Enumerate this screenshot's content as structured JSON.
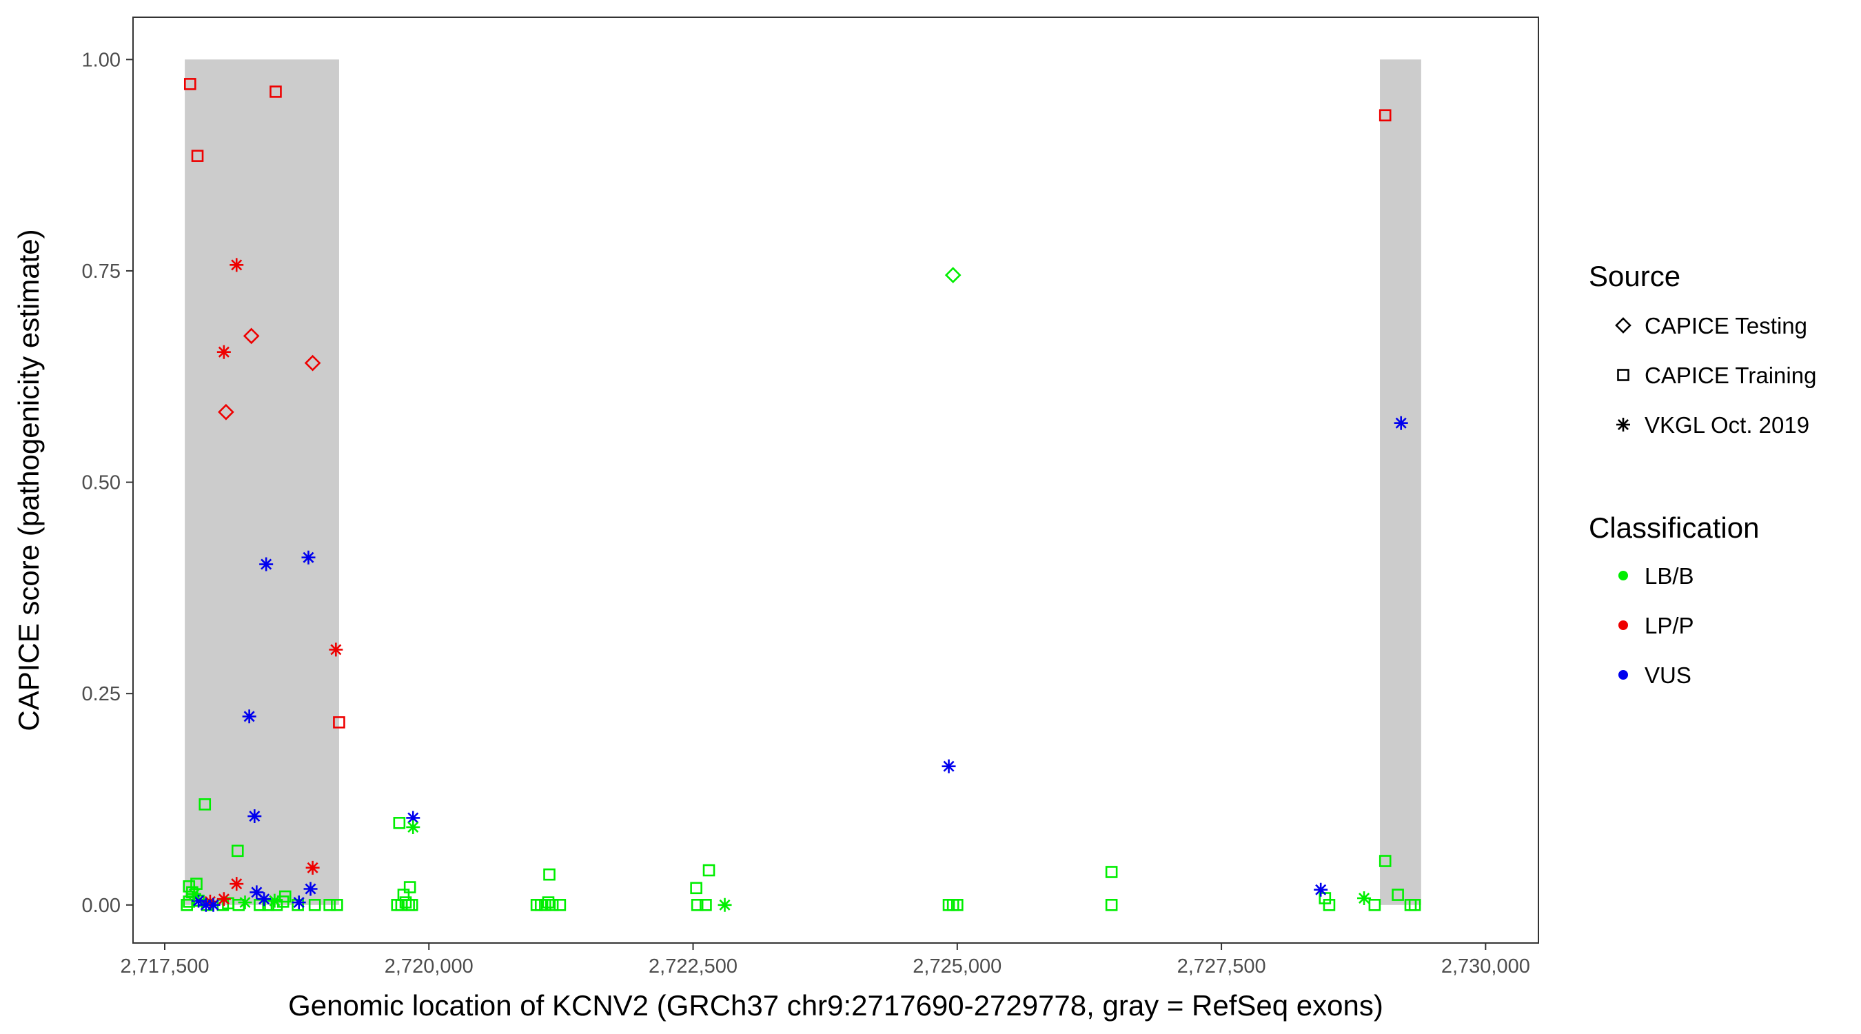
{
  "chart_data": {
    "type": "scatter",
    "xlabel": "Genomic location of KCNV2 (GRCh37 chr9:2717690-2729778, gray = RefSeq exons)",
    "ylabel": "CAPICE score (pathogenicity estimate)",
    "xlim": [
      2717200,
      2730500
    ],
    "ylim": [
      -0.045,
      1.05
    ],
    "x_ticks": [
      2717500,
      2720000,
      2722500,
      2725000,
      2727500,
      2730000
    ],
    "x_tick_labels": [
      "2,717,500",
      "2,720,000",
      "2,722,500",
      "2,725,000",
      "2,727,500",
      "2,730,000"
    ],
    "y_ticks": [
      0,
      0.25,
      0.5,
      0.75,
      1.0
    ],
    "y_tick_labels": [
      "0.00",
      "0.25",
      "0.50",
      "0.75",
      "1.00"
    ],
    "exon_regions": [
      [
        2717690,
        2719150
      ],
      [
        2729000,
        2729390
      ]
    ],
    "exon_region_range": [
      0,
      1
    ],
    "exon_color": "#cccccc",
    "grid": false,
    "legend_position": "right",
    "legend": {
      "source_title": "Source",
      "source_items": [
        {
          "label": "CAPICE Testing",
          "shape": "diamond"
        },
        {
          "label": "CAPICE Training",
          "shape": "square"
        },
        {
          "label": "VKGL Oct. 2019",
          "shape": "asterisk"
        }
      ],
      "class_title": "Classification",
      "class_items": [
        {
          "label": "LB/B",
          "color": "#00ee00"
        },
        {
          "label": "LP/P",
          "color": "#ee0000"
        },
        {
          "label": "VUS",
          "color": "#0000ee"
        }
      ]
    },
    "series": [
      {
        "source": "CAPICE Testing",
        "class": "LP/P",
        "points": [
          [
            2718080,
            0.583
          ],
          [
            2718320,
            0.673
          ],
          [
            2718900,
            0.641
          ]
        ]
      },
      {
        "source": "CAPICE Testing",
        "class": "LB/B",
        "points": [
          [
            2724960,
            0.745
          ]
        ]
      },
      {
        "source": "CAPICE Training",
        "class": "LP/P",
        "points": [
          [
            2717740,
            0.971
          ],
          [
            2717810,
            0.886
          ],
          [
            2718550,
            0.962
          ],
          [
            2719150,
            0.216
          ],
          [
            2729050,
            0.934
          ]
        ]
      },
      {
        "source": "CAPICE Training",
        "class": "LB/B",
        "points": [
          [
            2717880,
            0.119
          ],
          [
            2718190,
            0.064
          ],
          [
            2719720,
            0.097
          ],
          [
            2721140,
            0.036
          ],
          [
            2722650,
            0.041
          ],
          [
            2722530,
            0.02
          ],
          [
            2726460,
            0.039
          ],
          [
            2729050,
            0.052
          ],
          [
            2718640,
            0.01
          ],
          [
            2728480,
            0.008
          ],
          [
            2729170,
            0.012
          ],
          [
            2719820,
            0.021
          ],
          [
            2717710,
            0.0
          ],
          [
            2717730,
            0.004
          ],
          [
            2717760,
            0.015
          ],
          [
            2717800,
            0.025
          ],
          [
            2717730,
            0.022
          ],
          [
            2717820,
            0.005
          ],
          [
            2717900,
            0.0
          ],
          [
            2718050,
            0.0
          ],
          [
            2718100,
            0.002
          ],
          [
            2718200,
            0.0
          ],
          [
            2718400,
            0.0
          ],
          [
            2718480,
            0.0
          ],
          [
            2718560,
            0.0
          ],
          [
            2718620,
            0.004
          ],
          [
            2718760,
            0.0
          ],
          [
            2718920,
            0.0
          ],
          [
            2719060,
            0.0
          ],
          [
            2719130,
            0.0
          ],
          [
            2719700,
            0.0
          ],
          [
            2719740,
            0.0
          ],
          [
            2719780,
            0.003
          ],
          [
            2719810,
            0.0
          ],
          [
            2719840,
            0.0
          ],
          [
            2719760,
            0.012
          ],
          [
            2721020,
            0.0
          ],
          [
            2721060,
            0.0
          ],
          [
            2721100,
            0.0
          ],
          [
            2721130,
            0.003
          ],
          [
            2721170,
            0.0
          ],
          [
            2721240,
            0.0
          ],
          [
            2722540,
            0.0
          ],
          [
            2722620,
            0.0
          ],
          [
            2724920,
            0.0
          ],
          [
            2724960,
            0.0
          ],
          [
            2725000,
            0.0
          ],
          [
            2726460,
            0.0
          ],
          [
            2728520,
            0.0
          ],
          [
            2728950,
            0.0
          ],
          [
            2729290,
            0.0
          ],
          [
            2729330,
            0.0
          ]
        ]
      },
      {
        "source": "VKGL Oct. 2019",
        "class": "LP/P",
        "points": [
          [
            2718180,
            0.757
          ],
          [
            2718060,
            0.654
          ],
          [
            2719120,
            0.302
          ],
          [
            2718900,
            0.044
          ],
          [
            2718180,
            0.025
          ],
          [
            2718060,
            0.007
          ],
          [
            2717930,
            0.004
          ]
        ]
      },
      {
        "source": "VKGL Oct. 2019",
        "class": "VUS",
        "points": [
          [
            2718460,
            0.403
          ],
          [
            2718860,
            0.411
          ],
          [
            2718300,
            0.223
          ],
          [
            2718350,
            0.105
          ],
          [
            2719850,
            0.103
          ],
          [
            2724920,
            0.164
          ],
          [
            2729200,
            0.57
          ],
          [
            2728440,
            0.018
          ],
          [
            2718880,
            0.019
          ],
          [
            2718370,
            0.015
          ],
          [
            2718440,
            0.007
          ],
          [
            2718770,
            0.003
          ],
          [
            2717820,
            0.005
          ],
          [
            2717890,
            0.0
          ],
          [
            2717960,
            0.0
          ]
        ]
      },
      {
        "source": "VKGL Oct. 2019",
        "class": "LB/B",
        "points": [
          [
            2719850,
            0.092
          ],
          [
            2722800,
            0.0
          ],
          [
            2728850,
            0.008
          ],
          [
            2717780,
            0.013
          ],
          [
            2718260,
            0.003
          ],
          [
            2718540,
            0.005
          ]
        ]
      }
    ]
  }
}
